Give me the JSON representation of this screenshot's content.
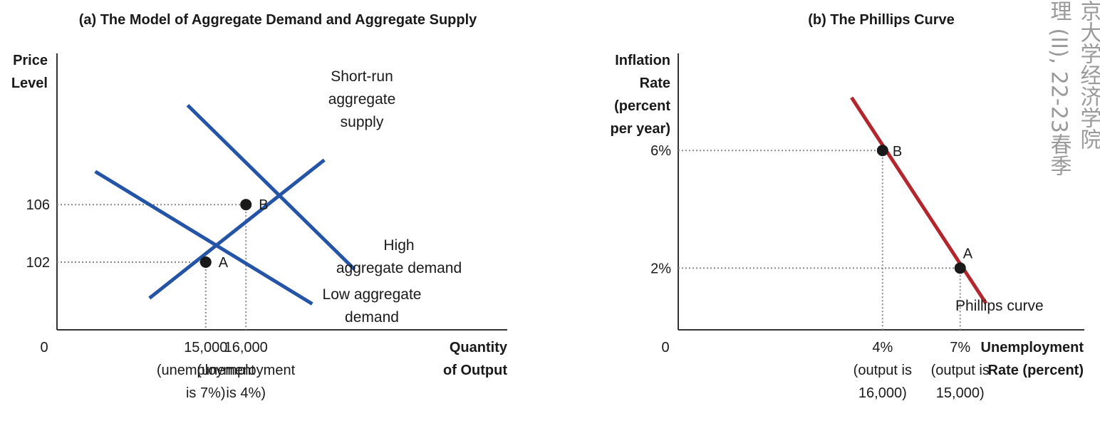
{
  "chart_data": [
    {
      "type": "line",
      "title": "(a) The Model of Aggregate Demand and Aggregate Supply",
      "ylabel": [
        "Price",
        "Level"
      ],
      "xlabel": [
        "Quantity",
        "of Output"
      ],
      "origin_label": "0",
      "x_ticks": [
        {
          "value": 15000,
          "lines": [
            "15,000",
            "(unemployment",
            "is 7%)"
          ]
        },
        {
          "value": 16000,
          "lines": [
            "16,000",
            "(unemployment",
            "is 4%)"
          ]
        }
      ],
      "y_ticks": [
        {
          "value": 102,
          "label": "102"
        },
        {
          "value": 106,
          "label": "106"
        }
      ],
      "series": [
        {
          "key": "sras",
          "label_lines": [
            "Short-run",
            "aggregate",
            "supply"
          ],
          "color": "#2454a6",
          "points": [
            [
              13600,
              99.5
            ],
            [
              17950,
              109.1
            ]
          ]
        },
        {
          "key": "ad_high",
          "label_lines": [
            "High",
            "aggregate demand"
          ],
          "color": "#2454a6",
          "points": [
            [
              14550,
              112.9
            ],
            [
              18700,
              101.5
            ]
          ]
        },
        {
          "key": "ad_low",
          "label_lines": [
            "Low aggregate",
            "demand"
          ],
          "color": "#2454a6",
          "points": [
            [
              12250,
              108.3
            ],
            [
              17650,
              99.1
            ]
          ]
        }
      ],
      "points": [
        {
          "label": "A",
          "x": 15000,
          "y": 102
        },
        {
          "label": "B",
          "x": 16000,
          "y": 106
        }
      ],
      "xlim": [
        11300,
        22500
      ],
      "ylim": [
        97.3,
        116.5
      ]
    },
    {
      "type": "line",
      "title": "(b) The Phillips Curve",
      "ylabel": [
        "Inflation",
        "Rate",
        "(percent",
        "per year)"
      ],
      "xlabel": [
        "Unemployment",
        "Rate (percent)"
      ],
      "origin_label": "0",
      "x_ticks": [
        {
          "value": 4,
          "lines": [
            "4%",
            "(output is",
            "16,000)"
          ]
        },
        {
          "value": 7,
          "lines": [
            "7%",
            "(output is",
            "15,000)"
          ]
        }
      ],
      "y_ticks": [
        {
          "value": 2,
          "label": "2%"
        },
        {
          "value": 6,
          "label": "6%"
        }
      ],
      "series": [
        {
          "key": "phillips",
          "label_lines": [
            "Phillips curve"
          ],
          "color": "#b3262d",
          "points": [
            [
              2.8,
              7.8
            ],
            [
              8.0,
              0.8
            ]
          ]
        }
      ],
      "points": [
        {
          "label": "B",
          "x": 4,
          "y": 6
        },
        {
          "label": "A",
          "x": 7,
          "y": 2
        }
      ],
      "xlim": [
        -3.9,
        11.8
      ],
      "ylim": [
        -0.1,
        9.3
      ]
    }
  ],
  "watermark": {
    "columns": [
      "京大学经济学院",
      "理 (II), 22-23春季"
    ]
  }
}
